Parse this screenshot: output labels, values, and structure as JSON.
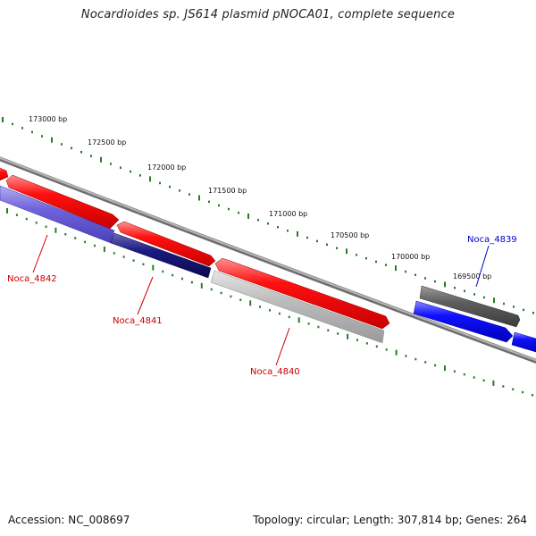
{
  "title": "Nocardioides sp. JS614 plasmid pNOCA01, complete sequence",
  "footer": {
    "accession": "Accession: NC_008697",
    "summary": "Topology: circular; Length: 307,814 bp; Genes: 264"
  },
  "colors": {
    "backbone": "#8c8c8c",
    "ticks": "#2a7a2a",
    "gene_red": "#ee0000",
    "gene_blue": "#0000ee",
    "gene_lightblue": "#6a5fd8",
    "gene_navy": "#141478",
    "gene_gray": "#b4b4b4",
    "gene_darkgray": "#5c5c5c",
    "label_red": "#cc0000",
    "label_blue": "#0000cc"
  },
  "ruler": {
    "unit": "bp",
    "labels": [
      "173000 bp",
      "172500 bp",
      "172000 bp",
      "171500 bp",
      "171000 bp",
      "170500 bp",
      "170000 bp",
      "169500 bp"
    ]
  },
  "genes": [
    {
      "name": "Noca_4842",
      "strand": "reverse",
      "color_key": "gene_lightblue",
      "labeled": true,
      "label_color_key": "label_red"
    },
    {
      "name": "Noca_4841",
      "strand": "reverse",
      "color_key": "gene_navy",
      "labeled": true,
      "label_color_key": "label_red"
    },
    {
      "name": "Noca_4840",
      "strand": "reverse",
      "color_key": "gene_gray",
      "labeled": true,
      "label_color_key": "label_red"
    },
    {
      "name": "Noca_4839",
      "strand": "forward",
      "color_key": "gene_darkgray",
      "labeled": true,
      "label_color_key": "label_blue"
    },
    {
      "name": "cds-fwd-1",
      "strand": "forward",
      "color_key": "gene_red",
      "labeled": false
    },
    {
      "name": "cds-fwd-2",
      "strand": "forward",
      "color_key": "gene_red",
      "labeled": false
    },
    {
      "name": "cds-fwd-3",
      "strand": "forward",
      "color_key": "gene_red",
      "labeled": false
    },
    {
      "name": "cds-fwd-4",
      "strand": "forward",
      "color_key": "gene_red",
      "labeled": false
    },
    {
      "name": "cds-fwd-5",
      "strand": "forward",
      "color_key": "gene_blue",
      "labeled": false
    },
    {
      "name": "cds-fwd-6",
      "strand": "forward",
      "color_key": "gene_blue",
      "labeled": false
    }
  ]
}
